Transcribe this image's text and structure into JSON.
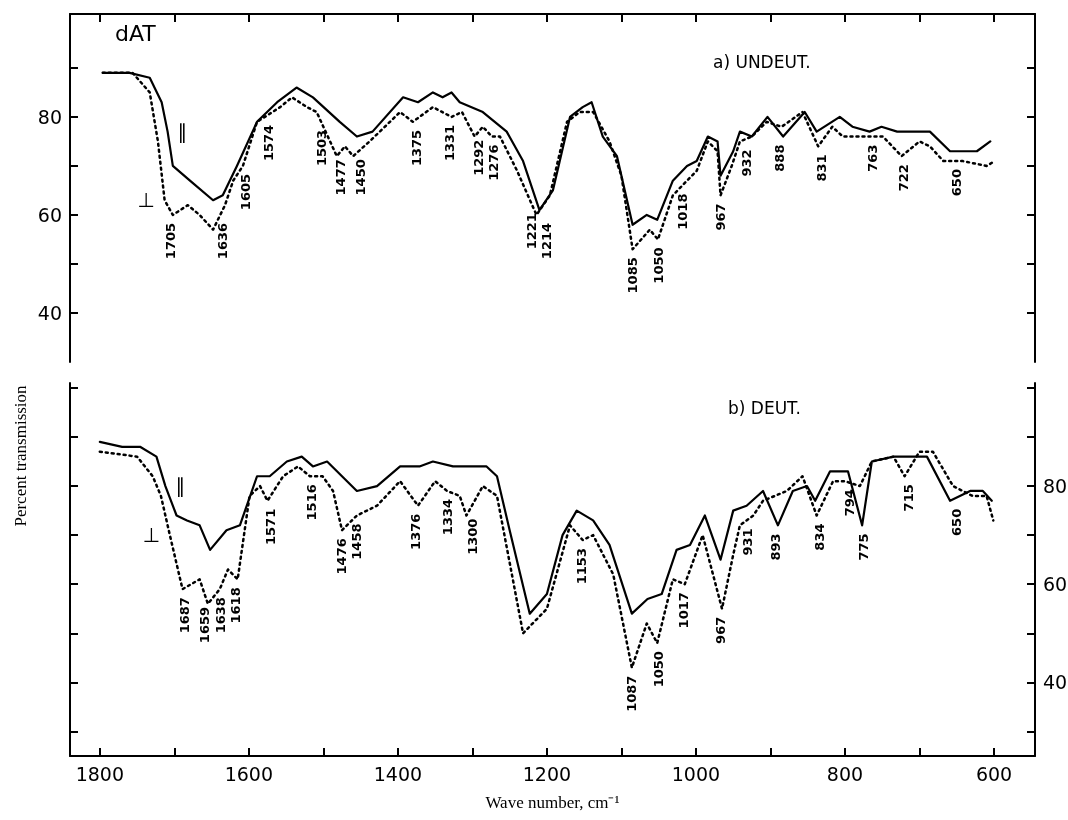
{
  "chart_data": [
    {
      "type": "line",
      "title": "a) UNDEUT.",
      "xlim": [
        1840,
        545
      ],
      "ylim": [
        30,
        101
      ],
      "xticks": [
        1800,
        {
          "value": 1700,
          "label": null
        },
        1600,
        {
          "value": 1500,
          "label": null
        },
        1400,
        {
          "value": 1300,
          "label": null
        },
        1200,
        {
          "value": 1100,
          "label": null
        },
        1000,
        {
          "value": 900,
          "label": null
        },
        800,
        {
          "value": 700,
          "label": null
        },
        600
      ],
      "yticks": [
        40,
        {
          "value": 50,
          "label": null
        },
        60,
        {
          "value": 70,
          "label": null
        },
        80,
        {
          "value": 90,
          "label": null
        }
      ],
      "tick_labels": "y",
      "series": [
        {
          "name": "∥",
          "color": "#000000",
          "line_style": "solid",
          "x": [
            1796,
            1760,
            1733,
            1717,
            1709,
            1702,
            1679,
            1648,
            1635,
            1616,
            1589,
            1562,
            1536,
            1514,
            1478,
            1455,
            1434,
            1393,
            1373,
            1353,
            1340,
            1328,
            1317,
            1286,
            1254,
            1232,
            1210,
            1192,
            1169,
            1152,
            1140,
            1125,
            1106,
            1085,
            1066,
            1052,
            1031,
            1012,
            999,
            984,
            971,
            967,
            950,
            941,
            925,
            904,
            883,
            854,
            838,
            807,
            790,
            767,
            751,
            730,
            704,
            686,
            659,
            636,
            623,
            605
          ],
          "values": [
            89,
            89,
            88,
            83,
            77,
            70,
            67,
            63,
            64,
            70,
            79,
            83,
            86,
            84,
            79,
            76,
            77,
            84,
            83,
            85,
            84,
            85,
            83,
            81,
            77,
            71,
            61,
            65,
            80,
            82,
            83,
            76,
            72,
            58,
            60,
            59,
            67,
            70,
            71,
            76,
            75,
            68,
            73,
            77,
            76,
            80,
            76,
            81,
            77,
            80,
            78,
            77,
            78,
            77,
            77,
            77,
            73,
            73,
            73,
            75
          ]
        },
        {
          "name": "⊥",
          "color": "#000000",
          "line_style": "dotted",
          "x": [
            1796,
            1756,
            1733,
            1722,
            1713,
            1702,
            1682,
            1666,
            1648,
            1632,
            1621,
            1608,
            1589,
            1558,
            1542,
            1522,
            1509,
            1491,
            1482,
            1471,
            1460,
            1438,
            1397,
            1380,
            1353,
            1328,
            1314,
            1297,
            1286,
            1274,
            1263,
            1240,
            1214,
            1196,
            1173,
            1156,
            1138,
            1116,
            1100,
            1085,
            1062,
            1051,
            1031,
            1012,
            999,
            984,
            971,
            967,
            952,
            941,
            925,
            905,
            885,
            857,
            836,
            817,
            803,
            780,
            749,
            724,
            700,
            686,
            668,
            642,
            610,
            599
          ],
          "values": [
            89,
            89,
            85,
            75,
            63,
            60,
            62,
            60,
            57,
            62,
            67,
            70,
            79,
            82,
            84,
            82,
            81,
            75,
            72,
            74,
            72,
            75,
            81,
            79,
            82,
            80,
            81,
            76,
            78,
            76,
            76,
            69,
            60,
            64,
            79,
            81,
            81,
            75,
            68,
            53,
            57,
            55,
            64,
            67,
            69,
            75,
            73,
            64,
            70,
            75,
            76,
            79,
            78,
            81,
            74,
            78,
            76,
            76,
            76,
            72,
            75,
            74,
            71,
            71,
            70,
            71
          ]
        }
      ],
      "annotations": [
        "dAT",
        {
          "text": "1705",
          "x": 1705,
          "y": 60
        },
        {
          "text": "1636",
          "x": 1636,
          "y": 60
        },
        {
          "text": "1605",
          "x": 1605,
          "y": 70
        },
        {
          "text": "1574",
          "x": 1574,
          "y": 80
        },
        {
          "text": "1503",
          "x": 1503,
          "y": 79
        },
        {
          "text": "1477",
          "x": 1477,
          "y": 73
        },
        {
          "text": "1450",
          "x": 1450,
          "y": 73
        },
        {
          "text": "1375",
          "x": 1375,
          "y": 79
        },
        {
          "text": "1331",
          "x": 1331,
          "y": 80
        },
        {
          "text": "1292",
          "x": 1292,
          "y": 77
        },
        {
          "text": "1276",
          "x": 1276,
          "y": 76
        },
        {
          "text": "1221",
          "x": 1221,
          "y": 62
        },
        {
          "text": "1214",
          "x": 1214,
          "y": 60
        },
        {
          "text": "1085",
          "x": 1085,
          "y": 53
        },
        {
          "text": "1050",
          "x": 1050,
          "y": 55
        },
        {
          "text": "1018",
          "x": 1018,
          "y": 66
        },
        {
          "text": "967",
          "x": 967,
          "y": 64
        },
        {
          "text": "932",
          "x": 932,
          "y": 75
        },
        {
          "text": "888",
          "x": 888,
          "y": 76
        },
        {
          "text": "831",
          "x": 831,
          "y": 74
        },
        {
          "text": "763",
          "x": 763,
          "y": 76
        },
        {
          "text": "722",
          "x": 722,
          "y": 72
        },
        {
          "text": "650",
          "x": 650,
          "y": 71
        }
      ]
    },
    {
      "type": "line",
      "title": "b) DEUT.",
      "xlabel": "Wave number, cm⁻¹",
      "ylabel": "Percent transmission",
      "xlim": [
        1840,
        545
      ],
      "ylim": [
        25,
        101
      ],
      "xticks": [
        1800,
        {
          "value": 1700,
          "label": null
        },
        1600,
        {
          "value": 1500,
          "label": null
        },
        1400,
        {
          "value": 1300,
          "label": null
        },
        1200,
        {
          "value": 1100,
          "label": null
        },
        1000,
        {
          "value": 900,
          "label": null
        },
        800,
        {
          "value": 700,
          "label": null
        },
        600
      ],
      "yticks": [
        {
          "value": 30,
          "label": null
        },
        40,
        {
          "value": 50,
          "label": null
        },
        60,
        {
          "value": 70,
          "label": null
        },
        80,
        {
          "value": 90,
          "label": null
        },
        {
          "value": 100,
          "label": null
        }
      ],
      "series": [
        {
          "name": "∥",
          "color": "#000000",
          "line_style": "solid",
          "x": [
            1800,
            1770,
            1746,
            1724,
            1712,
            1697,
            1683,
            1666,
            1652,
            1630,
            1612,
            1589,
            1572,
            1549,
            1529,
            1514,
            1495,
            1455,
            1428,
            1397,
            1371,
            1353,
            1326,
            1308,
            1281,
            1267,
            1250,
            1223,
            1200,
            1179,
            1160,
            1138,
            1116,
            1086,
            1065,
            1046,
            1026,
            1008,
            988,
            967,
            950,
            932,
            910,
            890,
            870,
            851,
            840,
            820,
            796,
            777,
            764,
            735,
            717,
            690,
            659,
            632,
            615,
            603
          ],
          "values": [
            89,
            88,
            88,
            86,
            80,
            74,
            73,
            72,
            67,
            71,
            72,
            82,
            82,
            85,
            86,
            84,
            85,
            79,
            80,
            84,
            84,
            85,
            84,
            84,
            84,
            82,
            71,
            54,
            58,
            70,
            75,
            73,
            68,
            54,
            57,
            58,
            67,
            68,
            74,
            65,
            75,
            76,
            79,
            72,
            79,
            80,
            77,
            83,
            83,
            72,
            85,
            86,
            86,
            86,
            77,
            79,
            79,
            77
          ]
        },
        {
          "name": "⊥",
          "color": "#000000",
          "line_style": "dotted",
          "x": [
            1800,
            1750,
            1729,
            1718,
            1706,
            1689,
            1666,
            1655,
            1639,
            1628,
            1615,
            1599,
            1585,
            1575,
            1554,
            1534,
            1518,
            1501,
            1487,
            1475,
            1455,
            1428,
            1397,
            1373,
            1350,
            1334,
            1317,
            1308,
            1286,
            1267,
            1232,
            1200,
            1169,
            1152,
            1138,
            1111,
            1086,
            1066,
            1052,
            1031,
            1015,
            991,
            965,
            950,
            941,
            923,
            910,
            878,
            857,
            838,
            816,
            800,
            780,
            764,
            735,
            720,
            700,
            682,
            655,
            629,
            610,
            601
          ],
          "values": [
            87,
            86,
            82,
            78,
            70,
            59,
            61,
            56,
            59,
            63,
            61,
            78,
            80,
            77,
            82,
            84,
            82,
            82,
            79,
            71,
            74,
            76,
            81,
            76,
            81,
            79,
            78,
            74,
            80,
            78,
            50,
            55,
            72,
            69,
            70,
            62,
            43,
            52,
            48,
            61,
            60,
            70,
            55,
            66,
            72,
            74,
            77,
            79,
            82,
            74,
            81,
            81,
            80,
            85,
            86,
            82,
            87,
            87,
            80,
            78,
            78,
            73
          ]
        }
      ],
      "annotations": [
        {
          "text": "1687",
          "x": 1687,
          "y": 59
        },
        {
          "text": "1659",
          "x": 1659,
          "y": 57
        },
        {
          "text": "1638",
          "x": 1638,
          "y": 59
        },
        {
          "text": "1618",
          "x": 1618,
          "y": 61
        },
        {
          "text": "1571",
          "x": 1571,
          "y": 77
        },
        {
          "text": "1516",
          "x": 1516,
          "y": 82
        },
        {
          "text": "1476",
          "x": 1476,
          "y": 71
        },
        {
          "text": "1458",
          "x": 1458,
          "y": 74
        },
        {
          "text": "1376",
          "x": 1376,
          "y": 76
        },
        {
          "text": "1334",
          "x": 1334,
          "y": 79
        },
        {
          "text": "1300",
          "x": 1300,
          "y": 75
        },
        {
          "text": "1153",
          "x": 1153,
          "y": 69
        },
        {
          "text": "1087",
          "x": 1087,
          "y": 43
        },
        {
          "text": "1050",
          "x": 1050,
          "y": 48
        },
        {
          "text": "1017",
          "x": 1017,
          "y": 60
        },
        {
          "text": "967",
          "x": 967,
          "y": 55
        },
        {
          "text": "931",
          "x": 931,
          "y": 73
        },
        {
          "text": "893",
          "x": 893,
          "y": 72
        },
        {
          "text": "834",
          "x": 834,
          "y": 74
        },
        {
          "text": "794",
          "x": 794,
          "y": 81
        },
        {
          "text": "775",
          "x": 775,
          "y": 72
        },
        {
          "text": "715",
          "x": 715,
          "y": 82
        },
        {
          "text": "650",
          "x": 650,
          "y": 77
        }
      ]
    }
  ]
}
